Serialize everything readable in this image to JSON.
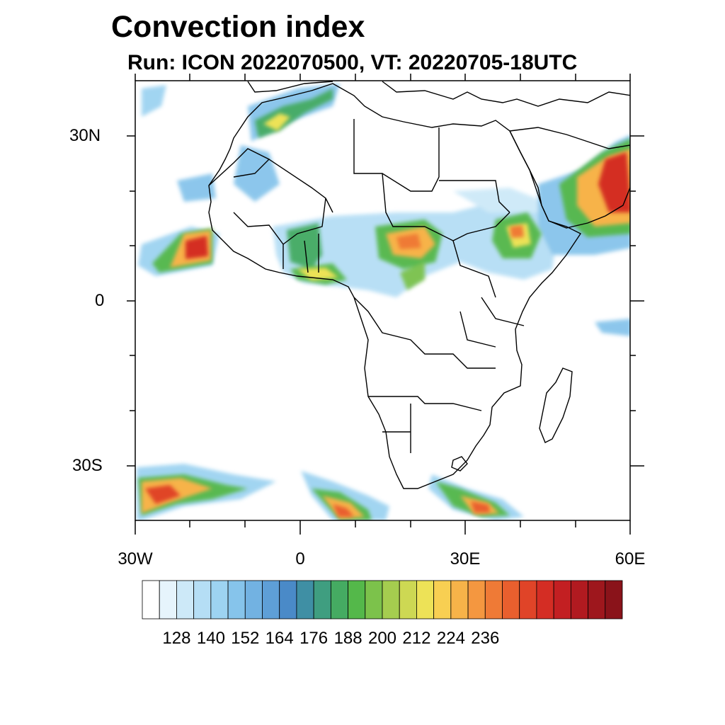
{
  "title": "Convection index",
  "subtitle": "Run: ICON 2022070500,  VT: 20220705-18UTC",
  "map": {
    "lon_range": [
      -30,
      60
    ],
    "lat_range": [
      -40,
      40
    ],
    "lat_labels": [
      {
        "lat": 30,
        "text": "30N"
      },
      {
        "lat": 0,
        "text": "0"
      },
      {
        "lat": -30,
        "text": "30S"
      }
    ],
    "lon_labels": [
      {
        "lon": -30,
        "text": "30W"
      },
      {
        "lon": 0,
        "text": "0"
      },
      {
        "lon": 30,
        "text": "30E"
      },
      {
        "lon": 60,
        "text": "60E"
      }
    ]
  },
  "colorbar": {
    "labels": [
      "128",
      "140",
      "152",
      "164",
      "176",
      "188",
      "200",
      "212",
      "224",
      "236"
    ],
    "colors": [
      "#ffffff",
      "#e6f4fc",
      "#cde9f8",
      "#b5def5",
      "#9dd3f1",
      "#86c4eb",
      "#72b2e2",
      "#5e9fd7",
      "#4a8ac8",
      "#3f8fa4",
      "#3f9e80",
      "#45ab62",
      "#54b84a",
      "#7cc24b",
      "#a5cd4f",
      "#cdd853",
      "#ede257",
      "#f8cf52",
      "#f7b349",
      "#f49740",
      "#ef7a36",
      "#e95f2e",
      "#e04428",
      "#d42d24",
      "#c31f22",
      "#b11a20",
      "#9e171d",
      "#8a131a"
    ]
  }
}
